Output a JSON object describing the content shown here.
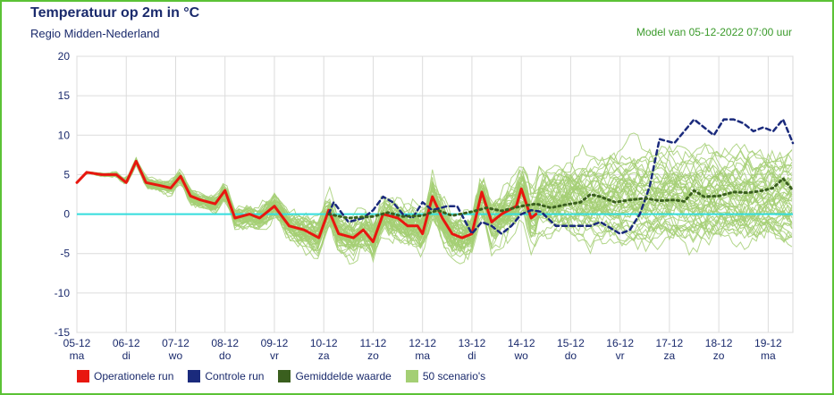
{
  "header": {
    "title": "Temperatuur op 2m in °C",
    "region": "Regio Midden-Nederland",
    "model_run": "Model van 05-12-2022 07:00 uur"
  },
  "chart_data": {
    "type": "line",
    "ylim": [
      -15,
      20
    ],
    "yticks": [
      20,
      15,
      10,
      5,
      0,
      -5,
      -10,
      -15
    ],
    "xlim": [
      0,
      14.5
    ],
    "x_categories": [
      {
        "date": "05-12",
        "day": "ma"
      },
      {
        "date": "06-12",
        "day": "di"
      },
      {
        "date": "07-12",
        "day": "wo"
      },
      {
        "date": "08-12",
        "day": "do"
      },
      {
        "date": "09-12",
        "day": "vr"
      },
      {
        "date": "10-12",
        "day": "za"
      },
      {
        "date": "11-12",
        "day": "zo"
      },
      {
        "date": "12-12",
        "day": "ma"
      },
      {
        "date": "13-12",
        "day": "di"
      },
      {
        "date": "14-12",
        "day": "wo"
      },
      {
        "date": "15-12",
        "day": "do"
      },
      {
        "date": "16-12",
        "day": "vr"
      },
      {
        "date": "17-12",
        "day": "za"
      },
      {
        "date": "18-12",
        "day": "zo"
      },
      {
        "date": "19-12",
        "day": "ma"
      }
    ],
    "grid": true,
    "zero_line_color": "#33dddd",
    "series": [
      {
        "name": "Operationele run",
        "color": "#e8170f",
        "style": "solid",
        "points": [
          [
            0,
            4
          ],
          [
            0.2,
            5.3
          ],
          [
            0.5,
            5.0
          ],
          [
            0.8,
            5.0
          ],
          [
            1.0,
            4.0
          ],
          [
            1.2,
            6.7
          ],
          [
            1.4,
            4.0
          ],
          [
            1.7,
            3.6
          ],
          [
            1.9,
            3.3
          ],
          [
            2.1,
            4.8
          ],
          [
            2.3,
            2.3
          ],
          [
            2.5,
            1.8
          ],
          [
            2.8,
            1.3
          ],
          [
            3.0,
            3.0
          ],
          [
            3.2,
            -0.5
          ],
          [
            3.5,
            0
          ],
          [
            3.7,
            -0.5
          ],
          [
            4.0,
            1.0
          ],
          [
            4.3,
            -1.5
          ],
          [
            4.6,
            -2.0
          ],
          [
            4.9,
            -3.0
          ],
          [
            5.1,
            0.5
          ],
          [
            5.3,
            -2.5
          ],
          [
            5.6,
            -3.0
          ],
          [
            5.8,
            -2.0
          ],
          [
            6.0,
            -3.5
          ],
          [
            6.2,
            0
          ],
          [
            6.5,
            -0.5
          ],
          [
            6.7,
            -1.5
          ],
          [
            6.9,
            -1.5
          ],
          [
            7.0,
            -2.5
          ],
          [
            7.2,
            2.2
          ],
          [
            7.4,
            -0.5
          ],
          [
            7.6,
            -2.5
          ],
          [
            7.8,
            -3.0
          ],
          [
            8.0,
            -2.5
          ],
          [
            8.2,
            2.8
          ],
          [
            8.4,
            -1.0
          ],
          [
            8.6,
            0
          ],
          [
            8.9,
            1.0
          ],
          [
            9.0,
            3.2
          ],
          [
            9.2,
            -0.5
          ],
          [
            9.3,
            0
          ]
        ]
      },
      {
        "name": "Controle run",
        "color": "#1a2a7c",
        "style": "dashed",
        "points": [
          [
            5.1,
            0
          ],
          [
            5.2,
            1.5
          ],
          [
            5.5,
            -1.0
          ],
          [
            5.8,
            -0.5
          ],
          [
            6.0,
            0.5
          ],
          [
            6.2,
            2.2
          ],
          [
            6.4,
            1.5
          ],
          [
            6.6,
            0
          ],
          [
            6.8,
            -0.5
          ],
          [
            7.0,
            1.5
          ],
          [
            7.2,
            0.5
          ],
          [
            7.5,
            1.0
          ],
          [
            7.7,
            1.0
          ],
          [
            8.0,
            -2.5
          ],
          [
            8.2,
            -1.0
          ],
          [
            8.4,
            -1.5
          ],
          [
            8.6,
            -2.5
          ],
          [
            8.8,
            -1.5
          ],
          [
            9.0,
            0
          ],
          [
            9.2,
            0.5
          ],
          [
            9.4,
            0.3
          ],
          [
            9.7,
            -1.5
          ],
          [
            10.0,
            -1.5
          ],
          [
            10.4,
            -1.5
          ],
          [
            10.6,
            -1.0
          ],
          [
            11.0,
            -2.5
          ],
          [
            11.2,
            -2.0
          ],
          [
            11.4,
            0
          ],
          [
            11.6,
            3.5
          ],
          [
            11.8,
            9.5
          ],
          [
            12.1,
            9.0
          ],
          [
            12.3,
            10.5
          ],
          [
            12.5,
            12.0
          ],
          [
            12.7,
            11.0
          ],
          [
            12.9,
            10.0
          ],
          [
            13.1,
            12.0
          ],
          [
            13.3,
            12.0
          ],
          [
            13.5,
            11.5
          ],
          [
            13.7,
            10.5
          ],
          [
            13.9,
            11.0
          ],
          [
            14.1,
            10.5
          ],
          [
            14.3,
            12.0
          ],
          [
            14.5,
            9.0
          ]
        ]
      },
      {
        "name": "Gemiddelde waarde",
        "color": "#3a5f1e",
        "style": "dotted",
        "points": [
          [
            5.1,
            0
          ],
          [
            5.5,
            -0.5
          ],
          [
            6.0,
            -0.3
          ],
          [
            6.3,
            0.2
          ],
          [
            6.6,
            -0.3
          ],
          [
            7.0,
            -0.2
          ],
          [
            7.3,
            0.5
          ],
          [
            7.6,
            -0.2
          ],
          [
            8.0,
            0.3
          ],
          [
            8.3,
            0.8
          ],
          [
            8.6,
            0.4
          ],
          [
            9.0,
            1.0
          ],
          [
            9.3,
            1.3
          ],
          [
            9.6,
            0.8
          ],
          [
            9.9,
            1.2
          ],
          [
            10.2,
            1.5
          ],
          [
            10.4,
            2.5
          ],
          [
            10.6,
            2.2
          ],
          [
            10.9,
            1.5
          ],
          [
            11.2,
            1.8
          ],
          [
            11.5,
            2.0
          ],
          [
            11.8,
            1.7
          ],
          [
            12.1,
            1.8
          ],
          [
            12.3,
            1.6
          ],
          [
            12.5,
            3.0
          ],
          [
            12.7,
            2.2
          ],
          [
            13.0,
            2.3
          ],
          [
            13.3,
            2.8
          ],
          [
            13.6,
            2.7
          ],
          [
            13.9,
            3.0
          ],
          [
            14.1,
            3.3
          ],
          [
            14.3,
            4.5
          ],
          [
            14.5,
            3.0
          ]
        ]
      }
    ],
    "scenarios": {
      "name": "50 scenario's",
      "color": "#a4cf74",
      "count": 50
    }
  },
  "legend": [
    {
      "label": "Operationele run",
      "color": "#e8170f"
    },
    {
      "label": "Controle run",
      "color": "#1a2a7c"
    },
    {
      "label": "Gemiddelde waarde",
      "color": "#3a5f1e"
    },
    {
      "label": "50 scenario's",
      "color": "#a4cf74"
    }
  ]
}
